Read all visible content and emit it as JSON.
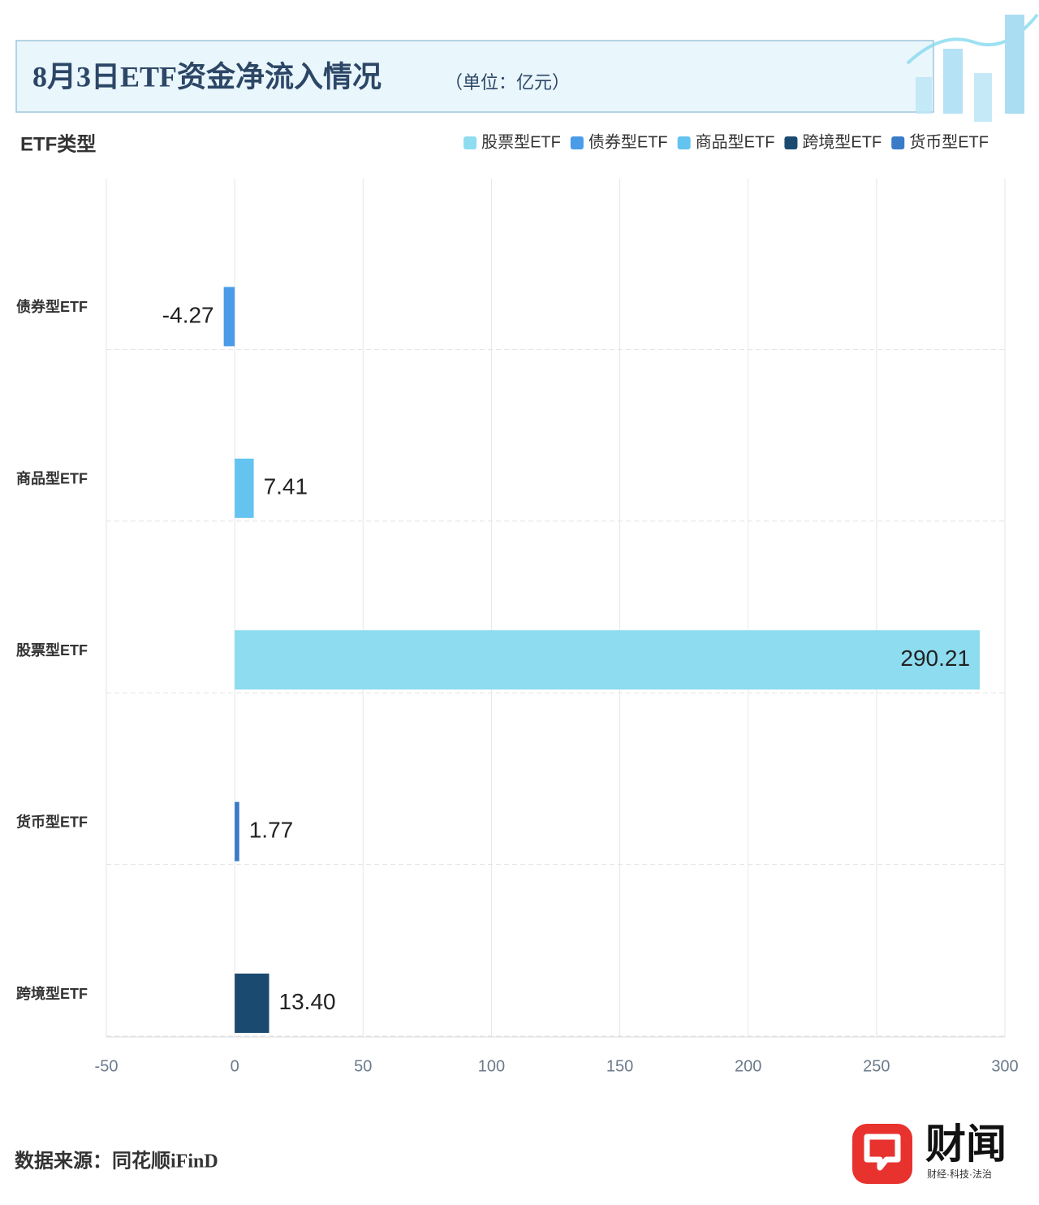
{
  "chart_data": {
    "type": "hbar",
    "title": "8月3日ETF资金净流入情况",
    "subtitle": "（单位：亿元）",
    "y_label": "ETF类型",
    "categories": [
      "债券型ETF",
      "商品型ETF",
      "股票型ETF",
      "货币型ETF",
      "跨境型ETF"
    ],
    "series": [
      {
        "name": "股票型ETF",
        "color": "#8ddcf0",
        "values": [
          null,
          null,
          290.21,
          null,
          null
        ],
        "value_labels": [
          null,
          null,
          "290.21",
          null,
          null
        ]
      },
      {
        "name": "债券型ETF",
        "color": "#4a9be8",
        "values": [
          -4.27,
          null,
          null,
          null,
          null
        ],
        "value_labels": [
          "-4.27",
          null,
          null,
          null,
          null
        ]
      },
      {
        "name": "商品型ETF",
        "color": "#64c3ef",
        "values": [
          null,
          7.41,
          null,
          null,
          null
        ],
        "value_labels": [
          null,
          "7.41",
          null,
          null,
          null
        ]
      },
      {
        "name": "跨境型ETF",
        "color": "#1a4a70",
        "values": [
          null,
          null,
          null,
          null,
          13.4
        ],
        "value_labels": [
          null,
          null,
          null,
          null,
          "13.40"
        ]
      },
      {
        "name": "货币型ETF",
        "color": "#3a7bc8",
        "values": [
          null,
          null,
          null,
          1.77,
          null
        ],
        "value_labels": [
          null,
          null,
          null,
          "1.77",
          null
        ]
      }
    ],
    "xlim": [
      -50,
      300
    ],
    "xticks": [
      -50,
      0,
      50,
      100,
      150,
      200,
      250,
      300
    ],
    "grid": true,
    "legend": "top-right",
    "source": "数据来源：同花顺iFinD",
    "brand": {
      "name": "财闻",
      "tagline": "财经·科技·法治"
    }
  }
}
